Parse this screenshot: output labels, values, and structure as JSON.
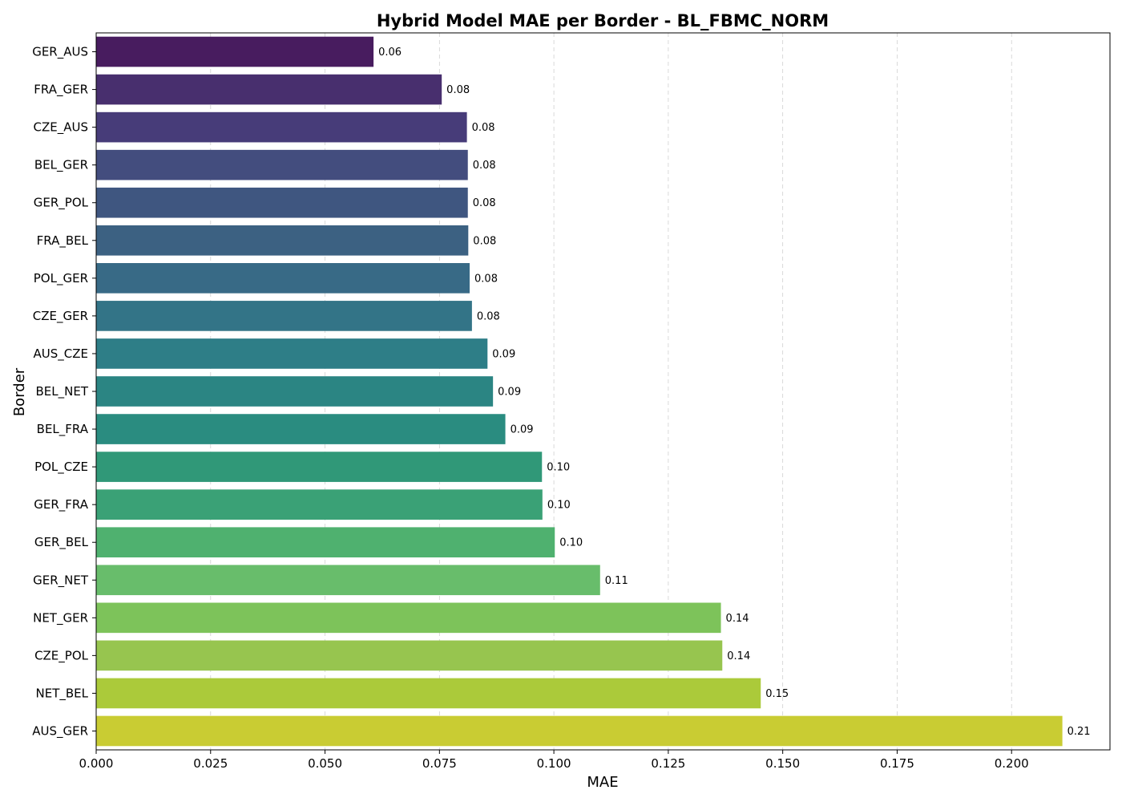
{
  "chart_data": {
    "type": "bar",
    "orientation": "horizontal",
    "title": "Hybrid Model MAE per Border - BL_FBMC_NORM",
    "xlabel": "MAE",
    "ylabel": "Border",
    "xlim": [
      0,
      0.2215
    ],
    "xticks": [
      "0.000",
      "0.025",
      "0.050",
      "0.075",
      "0.100",
      "0.125",
      "0.150",
      "0.175",
      "0.200"
    ],
    "xtick_values": [
      0,
      0.025,
      0.05,
      0.075,
      0.1,
      0.125,
      0.15,
      0.175,
      0.2
    ],
    "grid": "x-dashed",
    "categories": [
      "GER_AUS",
      "FRA_GER",
      "CZE_AUS",
      "BEL_GER",
      "GER_POL",
      "FRA_BEL",
      "POL_GER",
      "CZE_GER",
      "AUS_CZE",
      "BEL_NET",
      "BEL_FRA",
      "POL_CZE",
      "GER_FRA",
      "GER_BEL",
      "GER_NET",
      "NET_GER",
      "CZE_POL",
      "NET_BEL",
      "AUS_GER"
    ],
    "values": [
      0.0606,
      0.0755,
      0.081,
      0.0812,
      0.0812,
      0.0813,
      0.0816,
      0.0821,
      0.0855,
      0.0867,
      0.0894,
      0.0974,
      0.0975,
      0.1002,
      0.1101,
      0.1365,
      0.1368,
      0.1452,
      0.2111
    ],
    "data_labels": [
      "0.06",
      "0.08",
      "0.08",
      "0.08",
      "0.08",
      "0.08",
      "0.08",
      "0.08",
      "0.09",
      "0.09",
      "0.09",
      "0.10",
      "0.10",
      "0.10",
      "0.11",
      "0.14",
      "0.14",
      "0.15",
      "0.21"
    ],
    "colors": [
      "#481c5f",
      "#482f6e",
      "#473c79",
      "#434d7e",
      "#3f5680",
      "#3c6182",
      "#386a86",
      "#337487",
      "#2e7e87",
      "#2b8583",
      "#2a8c80",
      "#309878",
      "#3aa176",
      "#4fb16f",
      "#68bd6b",
      "#7dc35a",
      "#97c54f",
      "#abca3a",
      "#c9cc33"
    ]
  }
}
